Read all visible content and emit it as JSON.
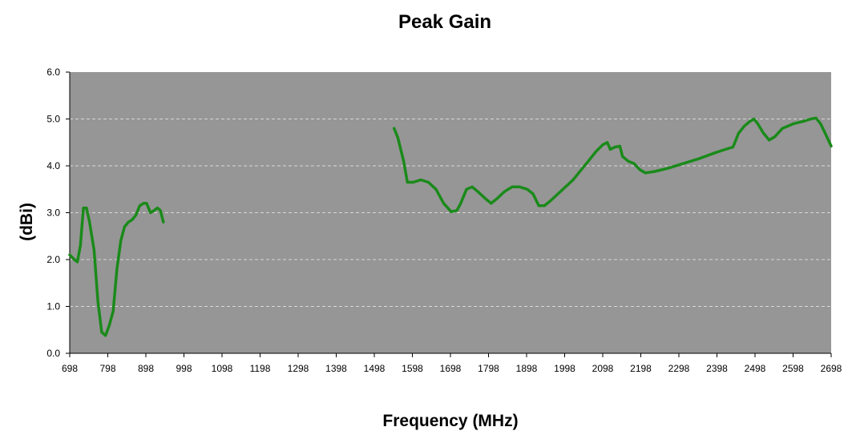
{
  "chart_data": {
    "type": "line",
    "title": "Peak Gain",
    "xlabel": "Frequency (MHz)",
    "ylabel": "(dBi)",
    "xlim": [
      698,
      2698
    ],
    "ylim": [
      0,
      6
    ],
    "x_ticks": [
      698,
      798,
      898,
      998,
      1098,
      1198,
      1298,
      1398,
      1498,
      1598,
      1698,
      1798,
      1898,
      1998,
      2098,
      2198,
      2298,
      2398,
      2498,
      2598,
      2698
    ],
    "y_ticks": [
      "0.0",
      "1.0",
      "2.0",
      "3.0",
      "4.0",
      "5.0",
      "6.0"
    ],
    "y_tick_values": [
      0,
      1,
      2,
      3,
      4,
      5,
      6
    ],
    "grid": true,
    "plot_background": "#969696",
    "line_color": "#1a8a1a",
    "series": [
      {
        "segments": [
          [
            [
              698,
              2.1
            ],
            [
              710,
              2.0
            ],
            [
              718,
              1.95
            ],
            [
              726,
              2.3
            ],
            [
              734,
              3.1
            ],
            [
              742,
              3.1
            ],
            [
              750,
              2.8
            ],
            [
              762,
              2.2
            ],
            [
              772,
              1.1
            ],
            [
              782,
              0.45
            ],
            [
              792,
              0.38
            ],
            [
              802,
              0.6
            ],
            [
              812,
              0.9
            ],
            [
              822,
              1.8
            ],
            [
              832,
              2.4
            ],
            [
              842,
              2.7
            ],
            [
              852,
              2.8
            ],
            [
              862,
              2.85
            ],
            [
              872,
              2.95
            ],
            [
              882,
              3.15
            ],
            [
              892,
              3.2
            ],
            [
              900,
              3.2
            ],
            [
              910,
              3.0
            ],
            [
              920,
              3.05
            ],
            [
              928,
              3.1
            ],
            [
              936,
              3.05
            ],
            [
              944,
              2.8
            ]
          ],
          [
            [
              1550,
              4.8
            ],
            [
              1560,
              4.6
            ],
            [
              1575,
              4.1
            ],
            [
              1585,
              3.65
            ],
            [
              1600,
              3.65
            ],
            [
              1620,
              3.7
            ],
            [
              1640,
              3.65
            ],
            [
              1660,
              3.5
            ],
            [
              1680,
              3.2
            ],
            [
              1700,
              3.02
            ],
            [
              1715,
              3.05
            ],
            [
              1725,
              3.2
            ],
            [
              1740,
              3.5
            ],
            [
              1755,
              3.55
            ],
            [
              1770,
              3.45
            ],
            [
              1790,
              3.3
            ],
            [
              1805,
              3.2
            ],
            [
              1820,
              3.3
            ],
            [
              1840,
              3.45
            ],
            [
              1860,
              3.55
            ],
            [
              1880,
              3.55
            ],
            [
              1900,
              3.5
            ],
            [
              1915,
              3.4
            ],
            [
              1930,
              3.15
            ],
            [
              1945,
              3.15
            ],
            [
              1960,
              3.25
            ],
            [
              1980,
              3.4
            ],
            [
              2000,
              3.55
            ],
            [
              2020,
              3.7
            ],
            [
              2040,
              3.9
            ],
            [
              2060,
              4.1
            ],
            [
              2080,
              4.3
            ],
            [
              2098,
              4.45
            ],
            [
              2110,
              4.5
            ],
            [
              2118,
              4.35
            ],
            [
              2130,
              4.4
            ],
            [
              2143,
              4.42
            ],
            [
              2150,
              4.2
            ],
            [
              2165,
              4.1
            ],
            [
              2180,
              4.05
            ],
            [
              2195,
              3.92
            ],
            [
              2210,
              3.85
            ],
            [
              2235,
              3.88
            ],
            [
              2270,
              3.95
            ],
            [
              2310,
              4.05
            ],
            [
              2350,
              4.15
            ],
            [
              2390,
              4.27
            ],
            [
              2420,
              4.35
            ],
            [
              2440,
              4.4
            ],
            [
              2455,
              4.7
            ],
            [
              2470,
              4.85
            ],
            [
              2485,
              4.95
            ],
            [
              2495,
              5.0
            ],
            [
              2505,
              4.9
            ],
            [
              2520,
              4.7
            ],
            [
              2535,
              4.55
            ],
            [
              2550,
              4.62
            ],
            [
              2570,
              4.8
            ],
            [
              2600,
              4.9
            ],
            [
              2625,
              4.95
            ],
            [
              2645,
              5.0
            ],
            [
              2658,
              5.02
            ],
            [
              2670,
              4.9
            ],
            [
              2685,
              4.65
            ],
            [
              2698,
              4.42
            ]
          ]
        ]
      }
    ]
  }
}
